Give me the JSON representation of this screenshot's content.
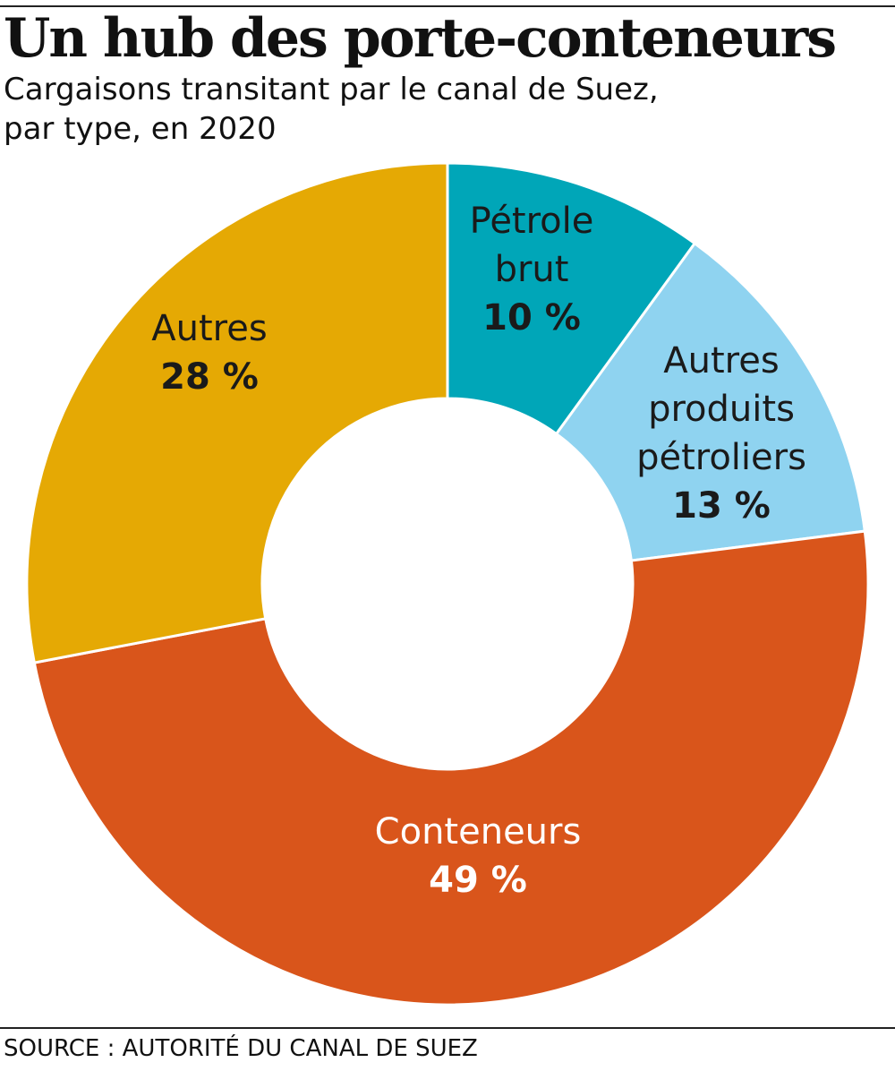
{
  "header": {
    "title": "Un hub des porte-conteneurs",
    "subtitle_line1": "Cargaisons transitant par le canal de Suez,",
    "subtitle_line2": "par type, en 2020"
  },
  "footer": {
    "source": "SOURCE : AUTORITÉ DU CANAL DE SUEZ"
  },
  "chart_data": {
    "type": "pie",
    "variant": "donut",
    "title": "Un hub des porte-conteneurs",
    "subtitle": "Cargaisons transitant par le canal de Suez, par type, en 2020",
    "unit": "%",
    "slices": [
      {
        "id": "petrole-brut",
        "label_lines": [
          "Pétrole",
          "brut"
        ],
        "value": 10,
        "value_label": "10 %",
        "color": "#00a6b8",
        "text_color": "#1a1a1a"
      },
      {
        "id": "autres-produits-petroliers",
        "label_lines": [
          "Autres",
          "produits",
          "pétroliers"
        ],
        "value": 13,
        "value_label": "13 %",
        "color": "#8fd3f0",
        "text_color": "#1a1a1a"
      },
      {
        "id": "conteneurs",
        "label_lines": [
          "Conteneurs"
        ],
        "value": 49,
        "value_label": "49 %",
        "color": "#d9551b",
        "text_color": "#ffffff"
      },
      {
        "id": "autres",
        "label_lines": [
          "Autres"
        ],
        "value": 28,
        "value_label": "28 %",
        "color": "#e5a904",
        "text_color": "#1a1a1a"
      }
    ]
  }
}
